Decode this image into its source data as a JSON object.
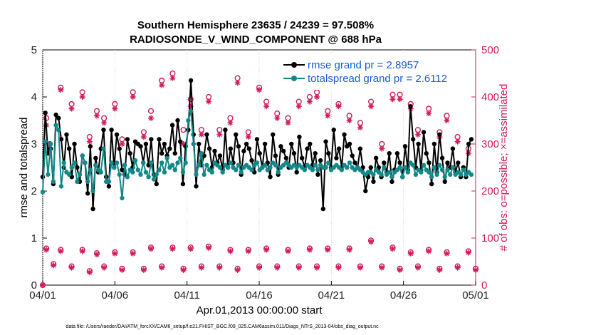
{
  "colors": {
    "rmse": "#000000",
    "spread": "#138888",
    "obs": "#d11a5b",
    "legend_text": "#1a5cd6"
  },
  "chart_data": {
    "type": "line",
    "title": "Southern Hemisphere 23635 / 24239 = 97.508%",
    "subtitle": "RADIOSONDE_V_WIND_COMPONENT @ 688 hPa",
    "xlabel": "Apr.01,2013 00:00:00 start",
    "ylabel": "rmse and totalspread",
    "ylabel_right": "# of obs: o=possible; ×=assimilated",
    "footnote": "data file: /Users/raeder/DAI/ATM_forcXX/CAM6_setup/f.e21.FHIST_BGC.f09_025.CAM6assim.011/Diags_NTrS_2013-04/obs_diag_output.nc",
    "xlim": [
      0,
      30
    ],
    "ylim": [
      0,
      5
    ],
    "ylim_right": [
      0,
      500
    ],
    "x_ticks": [
      0,
      5,
      10,
      15,
      20,
      25,
      30
    ],
    "x_tick_labels": [
      "04/01",
      "04/06",
      "04/11",
      "04/16",
      "04/21",
      "04/26",
      "05/01"
    ],
    "y_ticks": [
      0,
      1,
      2,
      3,
      4,
      5
    ],
    "y_tick_labels": [
      "0",
      "1",
      "2",
      "3",
      "4",
      "5"
    ],
    "y_right_ticks": [
      0,
      100,
      200,
      300,
      400,
      500
    ],
    "y_right_tick_labels": [
      "0",
      "100",
      "200",
      "300",
      "400",
      "500"
    ],
    "legend": [
      {
        "name": "rmse grand pr = 2.8957",
        "series": "rmse"
      },
      {
        "name": "totalspread grand pr = 2.6112",
        "series": "totalspread"
      }
    ],
    "series": [
      {
        "name": "rmse",
        "values": [
          2.3,
          3.66,
          2.8,
          2.9,
          2.15,
          3.62,
          3.55,
          3.1,
          2.5,
          3.2,
          2.9,
          2.3,
          3.0,
          2.5,
          2.2,
          2.75,
          2.6,
          1.95,
          2.95,
          1.62,
          2.7,
          2.4,
          2.9,
          3.3,
          2.3,
          2.1,
          3.3,
          2.5,
          3.2,
          2.9,
          2.45,
          2.35,
          3.1,
          2.8,
          2.5,
          3.05,
          3.0,
          2.95,
          2.6,
          3.0,
          2.55,
          3.1,
          2.35,
          2.15,
          3.1,
          2.8,
          3.0,
          2.75,
          2.9,
          3.4,
          2.8,
          3.5,
          3.05,
          2.15,
          2.95,
          3.3,
          4.35,
          3.2,
          2.1,
          3.0,
          2.55,
          2.75,
          3.2,
          2.9,
          2.5,
          2.85,
          2.6,
          2.75,
          2.45,
          3.3,
          2.5,
          2.9,
          2.6,
          3.2,
          2.95,
          2.35,
          2.85,
          3.0,
          2.9,
          2.65,
          2.4,
          3.1,
          2.8,
          2.5,
          3.0,
          2.6,
          2.3,
          3.2,
          2.75,
          2.35,
          2.95,
          2.85,
          2.7,
          2.5,
          3.0,
          2.8,
          2.4,
          3.15,
          2.7,
          2.5,
          2.9,
          3.0,
          2.55,
          2.8,
          2.35,
          2.65,
          1.62,
          3.05,
          2.8,
          2.5,
          3.3,
          2.7,
          2.9,
          2.5,
          3.2,
          2.95,
          3.0,
          2.75,
          2.6,
          2.5,
          2.9,
          2.5,
          2.0,
          2.3,
          2.5,
          2.2,
          2.7,
          2.5,
          2.3,
          2.6,
          2.4,
          2.8,
          2.2,
          2.45,
          2.8,
          2.6,
          2.3,
          2.95,
          2.45,
          3.8,
          3.1,
          2.5,
          3.0,
          2.45,
          3.25,
          2.8,
          2.6,
          2.15,
          3.0,
          2.4,
          3.2,
          2.7,
          2.2,
          2.6,
          2.5,
          2.9,
          2.4,
          2.6,
          2.3,
          2.5,
          2.3,
          3.0,
          3.1
        ],
        "color": "#000000"
      },
      {
        "name": "totalspread",
        "values": [
          1.98,
          3.05,
          2.35,
          3.0,
          2.2,
          3.4,
          3.3,
          2.1,
          2.6,
          2.4,
          2.35,
          2.5,
          2.6,
          2.2,
          2.35,
          2.75,
          2.6,
          2.2,
          2.45,
          2.0,
          2.55,
          2.45,
          2.4,
          2.9,
          2.2,
          2.2,
          2.6,
          2.5,
          2.6,
          2.35,
          1.85,
          2.55,
          2.3,
          2.45,
          2.4,
          2.65,
          2.45,
          2.35,
          2.6,
          2.4,
          2.3,
          2.6,
          2.25,
          2.35,
          2.45,
          2.6,
          2.4,
          2.7,
          2.5,
          2.55,
          2.45,
          2.6,
          2.7,
          2.4,
          2.6,
          3.5,
          3.7,
          3.0,
          2.35,
          2.55,
          2.8,
          2.35,
          2.55,
          2.45,
          2.4,
          2.6,
          2.55,
          2.5,
          2.4,
          2.55,
          2.5,
          2.6,
          2.5,
          2.45,
          2.55,
          2.4,
          2.5,
          2.55,
          2.5,
          2.45,
          2.55,
          2.6,
          2.45,
          2.5,
          2.55,
          2.45,
          2.5,
          2.6,
          2.55,
          2.4,
          2.5,
          2.55,
          2.6,
          2.55,
          2.5,
          2.55,
          2.5,
          2.55,
          2.5,
          2.45,
          2.55,
          2.5,
          2.45,
          2.55,
          2.45,
          2.55,
          2.5,
          2.5,
          2.6,
          2.45,
          2.5,
          2.55,
          2.5,
          2.45,
          2.55,
          2.5,
          2.6,
          2.5,
          2.45,
          2.5,
          2.45,
          2.4,
          2.35,
          2.4,
          2.4,
          2.35,
          2.45,
          2.4,
          2.35,
          2.5,
          2.35,
          2.4,
          2.3,
          2.4,
          2.45,
          2.5,
          2.3,
          2.5,
          2.4,
          2.6,
          2.55,
          2.35,
          2.45,
          2.4,
          2.55,
          2.45,
          2.4,
          2.3,
          2.5,
          2.35,
          2.55,
          2.45,
          2.3,
          2.45,
          2.35,
          2.5,
          2.35,
          2.4,
          2.35,
          2.45,
          2.35,
          2.4,
          2.35
        ],
        "color": "#138888"
      }
    ],
    "obs_possible": {
      "x": [
        0.25,
        0.5,
        1.25,
        2.0,
        2.75,
        3.25,
        3.75,
        4.25,
        5.0,
        5.5,
        6.25,
        7.0,
        7.5,
        8.25,
        9.0,
        9.75,
        10.25,
        11.0,
        11.5,
        12.25,
        13.0,
        13.5,
        14.25,
        15.0,
        15.5,
        16.25,
        17.0,
        17.75,
        18.5,
        19.0,
        19.75,
        20.5,
        21.25,
        22.0,
        22.75,
        23.5,
        24.25,
        24.75,
        25.5,
        26.0,
        26.75,
        27.5,
        28.0,
        28.75,
        29.5
      ],
      "values": [
        355,
        300,
        420,
        385,
        410,
        315,
        370,
        355,
        385,
        310,
        410,
        325,
        370,
        435,
        450,
        330,
        395,
        330,
        400,
        330,
        355,
        440,
        325,
        420,
        390,
        365,
        355,
        390,
        400,
        410,
        370,
        385,
        360,
        345,
        390,
        300,
        405,
        405,
        385,
        330,
        375,
        325,
        360,
        315,
        290
      ]
    },
    "obs_assimilated": {
      "x": [
        0.25,
        0.5,
        1.25,
        2.0,
        2.75,
        3.25,
        3.75,
        4.25,
        5.0,
        5.5,
        6.25,
        7.0,
        7.5,
        8.25,
        9.0,
        9.75,
        10.25,
        11.0,
        11.5,
        12.25,
        13.0,
        13.5,
        14.25,
        15.0,
        15.5,
        16.25,
        17.0,
        17.75,
        18.5,
        19.0,
        19.75,
        20.5,
        21.25,
        22.0,
        22.75,
        23.5,
        24.25,
        24.75,
        25.5,
        26.0,
        26.75,
        27.5,
        28.0,
        28.75,
        29.5
      ],
      "values": [
        340,
        290,
        415,
        375,
        400,
        305,
        360,
        345,
        375,
        300,
        400,
        315,
        355,
        425,
        440,
        300,
        380,
        320,
        390,
        320,
        345,
        430,
        315,
        415,
        380,
        355,
        345,
        380,
        390,
        400,
        360,
        380,
        350,
        335,
        380,
        290,
        395,
        395,
        375,
        320,
        365,
        315,
        350,
        305,
        280
      ]
    },
    "obs_low_possible": {
      "x": [
        0.0,
        0.25,
        0.75,
        1.25,
        2.0,
        2.75,
        3.25,
        3.75,
        4.25,
        5.0,
        5.5,
        6.25,
        7.0,
        7.5,
        8.25,
        9.0,
        9.75,
        10.25,
        11.0,
        11.5,
        12.25,
        13.0,
        13.5,
        14.25,
        15.0,
        15.5,
        16.25,
        17.0,
        17.75,
        18.5,
        19.0,
        19.75,
        20.5,
        21.25,
        22.0,
        22.75,
        23.5,
        24.25,
        24.75,
        25.5,
        26.0,
        26.75,
        27.5,
        28.0,
        28.75,
        29.5,
        30.0
      ],
      "values": [
        0,
        78,
        45,
        75,
        40,
        75,
        30,
        68,
        40,
        70,
        35,
        70,
        35,
        80,
        40,
        80,
        35,
        80,
        40,
        82,
        40,
        75,
        35,
        75,
        40,
        78,
        40,
        75,
        40,
        78,
        40,
        78,
        40,
        78,
        40,
        95,
        40,
        80,
        35,
        70,
        40,
        75,
        35,
        70,
        40,
        72,
        35
      ]
    },
    "obs_low_assimilated": {
      "x": [
        0.0,
        0.25,
        0.75,
        1.25,
        2.0,
        2.75,
        3.25,
        3.75,
        4.25,
        5.0,
        5.5,
        6.25,
        7.0,
        7.5,
        8.25,
        9.0,
        9.75,
        10.25,
        11.0,
        11.5,
        12.25,
        13.0,
        13.5,
        14.25,
        15.0,
        15.5,
        16.25,
        17.0,
        17.75,
        18.5,
        19.0,
        19.75,
        20.5,
        21.25,
        22.0,
        22.75,
        23.5,
        24.25,
        24.75,
        25.5,
        26.0,
        26.75,
        27.5,
        28.0,
        28.75,
        29.5,
        30.0
      ],
      "values": [
        0,
        75,
        42,
        72,
        37,
        72,
        27,
        65,
        37,
        67,
        32,
        67,
        32,
        77,
        37,
        77,
        32,
        77,
        37,
        79,
        37,
        72,
        32,
        72,
        37,
        75,
        37,
        72,
        37,
        75,
        37,
        75,
        37,
        75,
        37,
        92,
        37,
        77,
        32,
        67,
        37,
        72,
        32,
        67,
        37,
        69,
        32
      ]
    }
  }
}
